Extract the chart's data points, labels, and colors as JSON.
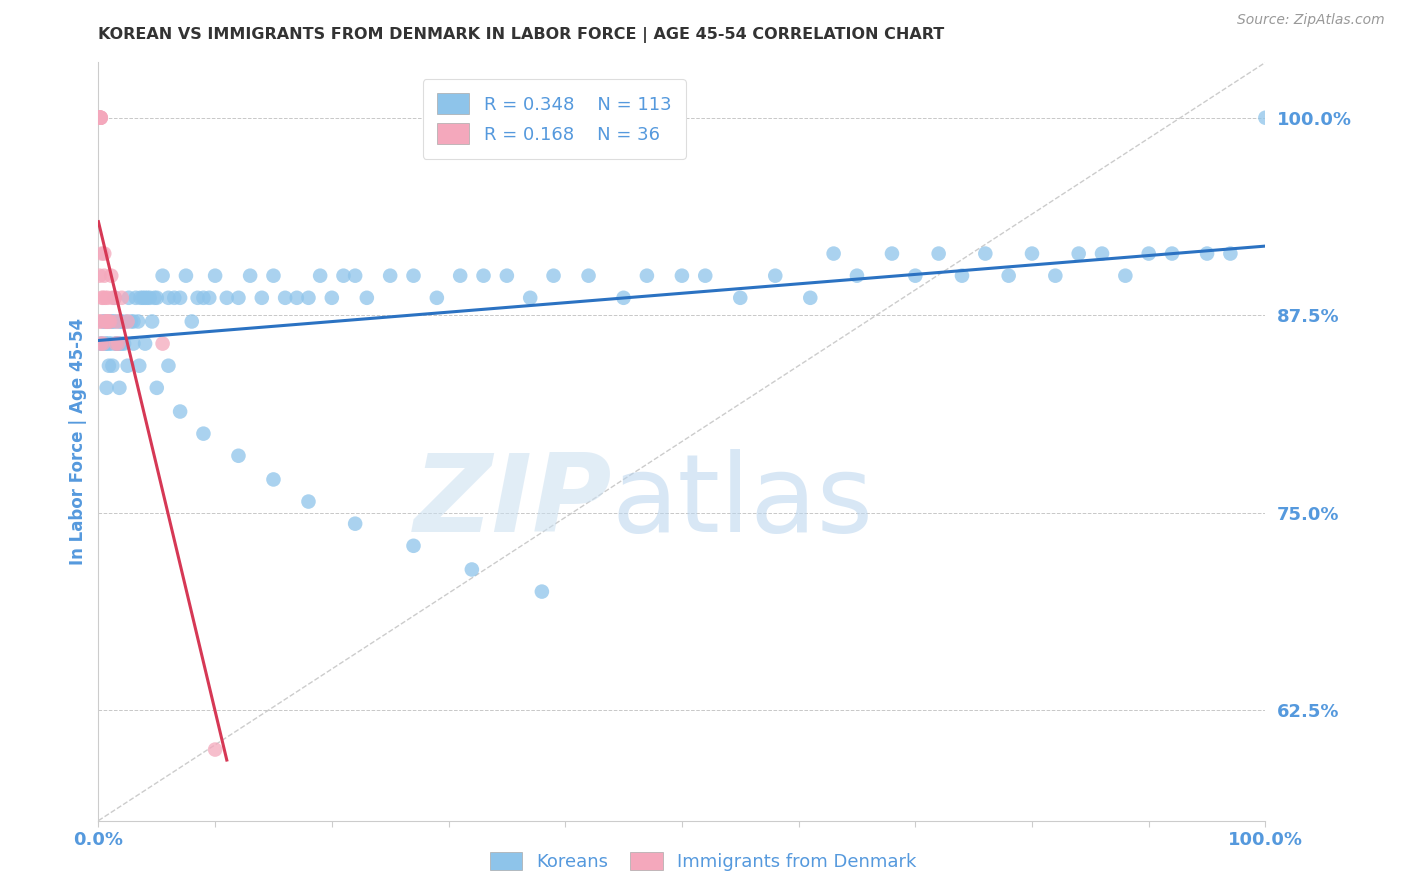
{
  "title": "KOREAN VS IMMIGRANTS FROM DENMARK IN LABOR FORCE | AGE 45-54 CORRELATION CHART",
  "source": "Source: ZipAtlas.com",
  "ylabel": "In Labor Force | Age 45-54",
  "xlim": [
    0.0,
    1.0
  ],
  "ylim": [
    0.555,
    1.035
  ],
  "yticks": [
    0.625,
    0.75,
    0.875,
    1.0
  ],
  "ytick_labels": [
    "62.5%",
    "75.0%",
    "87.5%",
    "100.0%"
  ],
  "xticks": [
    0.0,
    0.1,
    0.2,
    0.3,
    0.4,
    0.5,
    0.6,
    0.7,
    0.8,
    0.9,
    1.0
  ],
  "xtick_labels": [
    "0.0%",
    "",
    "",
    "",
    "",
    "",
    "",
    "",
    "",
    "",
    "100.0%"
  ],
  "korean_R": 0.348,
  "korean_N": 113,
  "denmark_R": 0.168,
  "denmark_N": 36,
  "korean_color": "#8EC4EA",
  "denmark_color": "#F4A8BC",
  "trend_korean_color": "#2B72C2",
  "trend_denmark_color": "#D63855",
  "background_color": "#FFFFFF",
  "grid_color": "#C8C8C8",
  "title_color": "#333333",
  "axis_label_color": "#5599DD",
  "tick_label_color": "#5599DD",
  "source_color": "#999999",
  "legend_color": "#5599DD",
  "korean_x": [
    0.002,
    0.003,
    0.004,
    0.005,
    0.006,
    0.007,
    0.008,
    0.009,
    0.01,
    0.011,
    0.012,
    0.013,
    0.014,
    0.015,
    0.016,
    0.017,
    0.018,
    0.019,
    0.02,
    0.022,
    0.024,
    0.026,
    0.028,
    0.03,
    0.032,
    0.034,
    0.036,
    0.038,
    0.04,
    0.042,
    0.044,
    0.046,
    0.048,
    0.05,
    0.055,
    0.06,
    0.065,
    0.07,
    0.075,
    0.08,
    0.085,
    0.09,
    0.095,
    0.1,
    0.11,
    0.12,
    0.13,
    0.14,
    0.15,
    0.16,
    0.17,
    0.18,
    0.19,
    0.2,
    0.21,
    0.22,
    0.23,
    0.25,
    0.27,
    0.29,
    0.31,
    0.33,
    0.35,
    0.37,
    0.39,
    0.42,
    0.45,
    0.47,
    0.5,
    0.52,
    0.55,
    0.58,
    0.61,
    0.63,
    0.65,
    0.68,
    0.7,
    0.72,
    0.74,
    0.76,
    0.78,
    0.8,
    0.82,
    0.84,
    0.86,
    0.88,
    0.9,
    0.92,
    0.95,
    0.97,
    1.0,
    0.007,
    0.009,
    0.012,
    0.015,
    0.018,
    0.02,
    0.025,
    0.03,
    0.035,
    0.04,
    0.05,
    0.06,
    0.07,
    0.09,
    0.12,
    0.15,
    0.18,
    0.22,
    0.27,
    0.32,
    0.38
  ],
  "korean_y": [
    0.857,
    0.857,
    0.871,
    0.871,
    0.857,
    0.857,
    0.871,
    0.857,
    0.871,
    0.857,
    0.871,
    0.871,
    0.886,
    0.857,
    0.871,
    0.857,
    0.857,
    0.871,
    0.871,
    0.857,
    0.871,
    0.886,
    0.871,
    0.871,
    0.886,
    0.871,
    0.886,
    0.886,
    0.886,
    0.886,
    0.886,
    0.871,
    0.886,
    0.886,
    0.9,
    0.886,
    0.886,
    0.886,
    0.9,
    0.871,
    0.886,
    0.886,
    0.886,
    0.9,
    0.886,
    0.886,
    0.9,
    0.886,
    0.9,
    0.886,
    0.886,
    0.886,
    0.9,
    0.886,
    0.9,
    0.9,
    0.886,
    0.9,
    0.9,
    0.886,
    0.9,
    0.9,
    0.9,
    0.886,
    0.9,
    0.9,
    0.886,
    0.9,
    0.9,
    0.9,
    0.886,
    0.9,
    0.886,
    0.914,
    0.9,
    0.914,
    0.9,
    0.914,
    0.9,
    0.914,
    0.9,
    0.914,
    0.9,
    0.914,
    0.914,
    0.9,
    0.914,
    0.914,
    0.914,
    0.914,
    1.0,
    0.829,
    0.843,
    0.843,
    0.857,
    0.829,
    0.857,
    0.843,
    0.857,
    0.843,
    0.857,
    0.829,
    0.843,
    0.814,
    0.8,
    0.786,
    0.771,
    0.757,
    0.743,
    0.729,
    0.714,
    0.7
  ],
  "denmark_x": [
    0.001,
    0.001,
    0.001,
    0.001,
    0.001,
    0.001,
    0.001,
    0.001,
    0.002,
    0.002,
    0.002,
    0.002,
    0.002,
    0.003,
    0.003,
    0.004,
    0.004,
    0.005,
    0.005,
    0.006,
    0.006,
    0.007,
    0.007,
    0.008,
    0.009,
    0.01,
    0.011,
    0.012,
    0.014,
    0.015,
    0.016,
    0.017,
    0.02,
    0.025,
    0.055,
    0.1
  ],
  "denmark_y": [
    1.0,
    1.0,
    1.0,
    1.0,
    1.0,
    1.0,
    0.9,
    0.871,
    1.0,
    1.0,
    1.0,
    0.871,
    0.857,
    0.914,
    0.886,
    0.886,
    0.857,
    0.914,
    0.9,
    0.886,
    0.871,
    0.871,
    0.871,
    0.886,
    0.871,
    0.871,
    0.9,
    0.886,
    0.886,
    0.857,
    0.871,
    0.857,
    0.886,
    0.871,
    0.857,
    0.6
  ],
  "diag_line_color": "#CCCCCC",
  "watermark_zip_color": "#CADFF0",
  "watermark_atlas_color": "#B8D4EE"
}
